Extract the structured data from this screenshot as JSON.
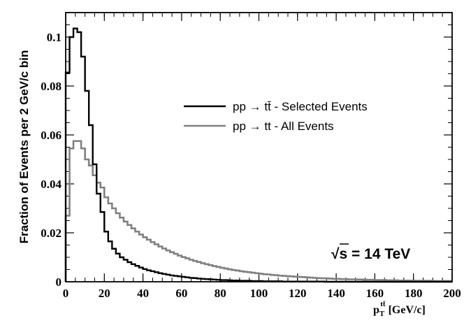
{
  "chart_data": {
    "type": "line",
    "title": "",
    "ylabel": "Fraction of Events per 2 GeV/c bin",
    "xlabel": {
      "base": "p",
      "sub": "T",
      "sup": "tt̄",
      "units": "[GeV/c]"
    },
    "xlim": [
      0,
      200
    ],
    "ylim": [
      0,
      0.11
    ],
    "x_ticks": [
      "0",
      "20",
      "40",
      "60",
      "80",
      "100",
      "120",
      "140",
      "160",
      "180",
      "200"
    ],
    "y_ticks": [
      "0",
      "0.02",
      "0.04",
      "0.06",
      "0.08",
      "0.1"
    ],
    "grid": false,
    "bin_width": 2,
    "legend": {
      "position": "top-right",
      "entries": [
        {
          "label": "pp → tt̄ - Selected Events",
          "color": "#000000"
        },
        {
          "label": "pp → tt - All Events",
          "color": "#808080"
        }
      ]
    },
    "annotation": {
      "sqrt_symbol": "√",
      "sqrt_arg": "s",
      "value_text": " = 14 TeV"
    },
    "series": [
      {
        "name": "pp → tt̄ - Selected Events",
        "color": "#000000",
        "values": [
          0.0855,
          0.1,
          0.1035,
          0.102,
          0.092,
          0.078,
          0.064,
          0.048,
          0.036,
          0.0285,
          0.0205,
          0.0165,
          0.0135,
          0.0115,
          0.01,
          0.009,
          0.008,
          0.0072,
          0.0065,
          0.0058,
          0.0052,
          0.0047,
          0.0043,
          0.0039,
          0.0035,
          0.0032,
          0.0029,
          0.0026,
          0.0024,
          0.0022,
          0.002,
          0.0018,
          0.0016,
          0.0015,
          0.0013,
          0.0012,
          0.0011,
          0.001,
          0.0009,
          0.0008,
          0.0007,
          0.0007,
          0.0006,
          0.0005,
          0.0005,
          0.0004,
          0.0004,
          0.0004,
          0.0003,
          0.0003,
          0.0003,
          0.0002,
          0.0002,
          0.0002,
          0.0002,
          0.0002,
          0.0001,
          0.0001,
          0.0001,
          0.0001,
          0.0001,
          0.0001,
          0.0001,
          0.0001,
          0.0001,
          0.0001,
          0.0001,
          0.0,
          0.0,
          0.0,
          0.0,
          0.0,
          0.0,
          0.0,
          0.0,
          0.0,
          0.0,
          0.0,
          0.0,
          0.0,
          0.0,
          0.0,
          0.0,
          0.0,
          0.0,
          0.0,
          0.0,
          0.0,
          0.0,
          0.0,
          0.0,
          0.0,
          0.0,
          0.0,
          0.0,
          0.0,
          0.0,
          0.0,
          0.0,
          0.0
        ]
      },
      {
        "name": "pp → tt - All Events",
        "color": "#808080",
        "values": [
          0.027,
          0.0545,
          0.0575,
          0.0575,
          0.0545,
          0.05,
          0.0475,
          0.0435,
          0.0405,
          0.0385,
          0.0345,
          0.032,
          0.03,
          0.028,
          0.0262,
          0.0246,
          0.0232,
          0.0218,
          0.0205,
          0.0193,
          0.0182,
          0.0172,
          0.0162,
          0.0153,
          0.0144,
          0.0136,
          0.0128,
          0.0121,
          0.0114,
          0.0107,
          0.0101,
          0.0096,
          0.009,
          0.0085,
          0.0081,
          0.0076,
          0.0072,
          0.0068,
          0.0064,
          0.0061,
          0.0057,
          0.0054,
          0.0051,
          0.0048,
          0.0046,
          0.0043,
          0.0041,
          0.0039,
          0.0037,
          0.0035,
          0.0033,
          0.0031,
          0.003,
          0.0028,
          0.0027,
          0.0025,
          0.0024,
          0.0023,
          0.0022,
          0.0021,
          0.002,
          0.0019,
          0.0018,
          0.0017,
          0.0016,
          0.0015,
          0.0014,
          0.0014,
          0.0013,
          0.0012,
          0.0012,
          0.0011,
          0.0011,
          0.001,
          0.001,
          0.0009,
          0.0009,
          0.0008,
          0.0008,
          0.0008,
          0.0007,
          0.0007,
          0.0007,
          0.0006,
          0.0006,
          0.0006,
          0.0005,
          0.0005,
          0.0005,
          0.0005,
          0.0004,
          0.0004,
          0.0004,
          0.0004,
          0.0004,
          0.0003,
          0.0003,
          0.0003,
          0.0003,
          0.0003
        ]
      }
    ]
  }
}
